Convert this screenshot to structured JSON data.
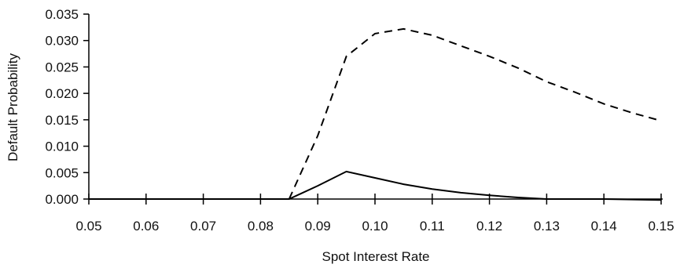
{
  "chart_data": {
    "type": "line",
    "title": "",
    "xlabel": "Spot Interest Rate",
    "ylabel": "Default Probability",
    "xlim": [
      0.05,
      0.15
    ],
    "ylim": [
      0.0,
      0.035
    ],
    "x_ticks": [
      "0.05",
      "0.06",
      "0.07",
      "0.08",
      "0.09",
      "0.10",
      "0.11",
      "0.12",
      "0.13",
      "0.14",
      "0.15"
    ],
    "y_ticks": [
      "0.000",
      "0.005",
      "0.010",
      "0.015",
      "0.020",
      "0.025",
      "0.030",
      "0.035"
    ],
    "grid": false,
    "legend": "none",
    "series": [
      {
        "style": "dashed",
        "color": "#000000",
        "x": [
          0.085,
          0.09,
          0.095,
          0.1,
          0.105,
          0.11,
          0.115,
          0.12,
          0.125,
          0.13,
          0.135,
          0.14,
          0.145,
          0.15
        ],
        "y": [
          0.0,
          0.012,
          0.027,
          0.0313,
          0.0322,
          0.031,
          0.029,
          0.027,
          0.0248,
          0.0222,
          0.0202,
          0.018,
          0.0163,
          0.0148
        ]
      },
      {
        "style": "solid",
        "color": "#000000",
        "x": [
          0.05,
          0.08,
          0.085,
          0.09,
          0.095,
          0.1,
          0.105,
          0.11,
          0.115,
          0.12,
          0.125,
          0.13,
          0.14,
          0.15
        ],
        "y": [
          0.0,
          0.0,
          0.0,
          0.0025,
          0.0052,
          0.004,
          0.0028,
          0.0019,
          0.0012,
          0.0007,
          0.0003,
          0.0,
          0.0,
          -0.0002
        ]
      }
    ]
  }
}
